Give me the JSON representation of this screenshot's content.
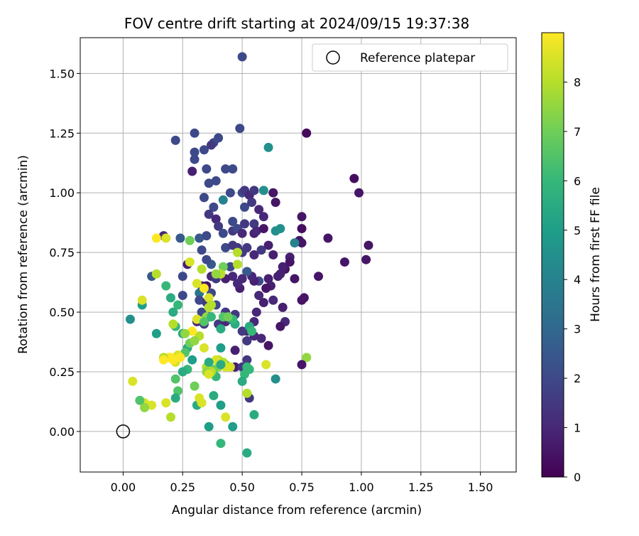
{
  "chart_data": {
    "type": "scatter",
    "title": "FOV centre drift starting at 2024/09/15 19:37:38",
    "xlabel": "Angular distance from reference (arcmin)",
    "ylabel": "Rotation from reference (arcmin)",
    "xlim": [
      -0.18,
      1.65
    ],
    "ylim": [
      -0.17,
      1.65
    ],
    "xticks": [
      0.0,
      0.25,
      0.5,
      0.75,
      1.0,
      1.25,
      1.5
    ],
    "yticks": [
      0.0,
      0.25,
      0.5,
      0.75,
      1.0,
      1.25,
      1.5
    ],
    "xtick_labels": [
      "0.00",
      "0.25",
      "0.50",
      "0.75",
      "1.00",
      "1.25",
      "1.50"
    ],
    "ytick_labels": [
      "0.00",
      "0.25",
      "0.50",
      "0.75",
      "1.00",
      "1.25",
      "1.50"
    ],
    "grid": true,
    "legend": {
      "placement": "top-right",
      "label": "Reference platepar"
    },
    "reference_point": {
      "x": 0.0,
      "y": 0.0
    },
    "colorbar": {
      "label": "Hours from first FF file",
      "range": [
        0,
        9
      ],
      "ticks": [
        0,
        1,
        2,
        3,
        4,
        5,
        6,
        7,
        8
      ],
      "colormap": "viridis",
      "colors": [
        "#440154",
        "#482878",
        "#3e4989",
        "#31688e",
        "#26828e",
        "#1f9e89",
        "#35b779",
        "#6ece58",
        "#b5de2b",
        "#fde725"
      ]
    },
    "points": [
      [
        0.5,
        1.57,
        2.0
      ],
      [
        0.77,
        1.25,
        0.2
      ],
      [
        0.22,
        1.22,
        2.0
      ],
      [
        0.3,
        1.25,
        2.0
      ],
      [
        0.49,
        1.27,
        2.0
      ],
      [
        0.3,
        1.17,
        2.0
      ],
      [
        0.34,
        1.18,
        2.0
      ],
      [
        0.38,
        1.21,
        2.0
      ],
      [
        0.4,
        1.23,
        2.0
      ],
      [
        0.3,
        1.14,
        2.0
      ],
      [
        0.61,
        1.19,
        4.5
      ],
      [
        0.37,
        1.2,
        1.5
      ],
      [
        0.29,
        1.09,
        0.8
      ],
      [
        0.35,
        1.1,
        2.0
      ],
      [
        0.39,
        1.05,
        2.0
      ],
      [
        0.43,
        1.1,
        2.0
      ],
      [
        0.46,
        1.1,
        2.0
      ],
      [
        0.97,
        1.06,
        0.3
      ],
      [
        0.99,
        1.0,
        0.5
      ],
      [
        0.36,
        1.04,
        2.0
      ],
      [
        0.34,
        0.98,
        2.0
      ],
      [
        0.45,
        1.0,
        2.0
      ],
      [
        0.5,
        1.0,
        2.0
      ],
      [
        0.51,
        1.01,
        1.5
      ],
      [
        0.53,
        0.99,
        1.0
      ],
      [
        0.55,
        1.01,
        1.5
      ],
      [
        0.59,
        1.01,
        4.5
      ],
      [
        0.63,
        1.0,
        0.5
      ],
      [
        0.42,
        0.97,
        4.0
      ],
      [
        0.38,
        0.94,
        2.0
      ],
      [
        0.36,
        0.91,
        1.5
      ],
      [
        0.39,
        0.89,
        1.0
      ],
      [
        0.46,
        0.88,
        2.0
      ],
      [
        0.51,
        0.94,
        2.0
      ],
      [
        0.54,
        0.96,
        1.5
      ],
      [
        0.57,
        0.93,
        1.0
      ],
      [
        0.59,
        0.9,
        1.0
      ],
      [
        0.64,
        0.96,
        0.5
      ],
      [
        0.75,
        0.9,
        0.5
      ],
      [
        0.32,
        0.81,
        2.5
      ],
      [
        0.24,
        0.81,
        2.5
      ],
      [
        0.35,
        0.82,
        2.0
      ],
      [
        0.4,
        0.86,
        1.5
      ],
      [
        0.42,
        0.83,
        2.0
      ],
      [
        0.46,
        0.84,
        1.5
      ],
      [
        0.48,
        0.85,
        2.0
      ],
      [
        0.5,
        0.83,
        1.0
      ],
      [
        0.51,
        0.87,
        1.5
      ],
      [
        0.55,
        0.87,
        1.5
      ],
      [
        0.55,
        0.83,
        0.8
      ],
      [
        0.56,
        0.84,
        1.0
      ],
      [
        0.59,
        0.85,
        0.5
      ],
      [
        0.64,
        0.84,
        4.5
      ],
      [
        0.66,
        0.85,
        4.5
      ],
      [
        0.75,
        0.85,
        0.3
      ],
      [
        0.74,
        0.8,
        0.5
      ],
      [
        0.75,
        0.79,
        0.5
      ],
      [
        0.72,
        0.79,
        4.0
      ],
      [
        0.86,
        0.81,
        0.5
      ],
      [
        1.03,
        0.78,
        0.5
      ],
      [
        1.02,
        0.72,
        0.5
      ],
      [
        0.93,
        0.71,
        0.5
      ],
      [
        0.7,
        0.73,
        0.8
      ],
      [
        0.7,
        0.71,
        0.5
      ],
      [
        0.68,
        0.68,
        0.5
      ],
      [
        0.66,
        0.66,
        0.8
      ],
      [
        0.61,
        0.64,
        0.8
      ],
      [
        0.62,
        0.61,
        0.8
      ],
      [
        0.6,
        0.6,
        0.5
      ],
      [
        0.57,
        0.63,
        2.0
      ],
      [
        0.55,
        0.63,
        0.8
      ],
      [
        0.54,
        0.65,
        1.0
      ],
      [
        0.52,
        0.67,
        2.5
      ],
      [
        0.5,
        0.64,
        1.0
      ],
      [
        0.46,
        0.65,
        1.0
      ],
      [
        0.43,
        0.64,
        0.8
      ],
      [
        0.49,
        0.6,
        0.8
      ],
      [
        0.48,
        0.62,
        1.0
      ],
      [
        0.45,
        0.69,
        2.0
      ],
      [
        0.43,
        0.77,
        2.0
      ],
      [
        0.46,
        0.78,
        1.5
      ],
      [
        0.48,
        0.77,
        1.5
      ],
      [
        0.5,
        0.75,
        1.5
      ],
      [
        0.52,
        0.77,
        1.5
      ],
      [
        0.55,
        0.74,
        1.0
      ],
      [
        0.58,
        0.76,
        1.5
      ],
      [
        0.61,
        0.78,
        0.8
      ],
      [
        0.63,
        0.74,
        0.8
      ],
      [
        0.65,
        0.65,
        0.8
      ],
      [
        0.67,
        0.69,
        0.8
      ],
      [
        0.72,
        0.64,
        0.5
      ],
      [
        0.82,
        0.65,
        0.5
      ],
      [
        0.76,
        0.56,
        0.5
      ],
      [
        0.75,
        0.55,
        0.5
      ],
      [
        0.67,
        0.52,
        0.8
      ],
      [
        0.68,
        0.46,
        1.0
      ],
      [
        0.66,
        0.44,
        0.5
      ],
      [
        0.63,
        0.55,
        1.0
      ],
      [
        0.59,
        0.54,
        0.8
      ],
      [
        0.57,
        0.57,
        1.0
      ],
      [
        0.56,
        0.5,
        1.0
      ],
      [
        0.55,
        0.46,
        1.0
      ],
      [
        0.52,
        0.42,
        1.0
      ],
      [
        0.5,
        0.42,
        1.5
      ],
      [
        0.52,
        0.38,
        1.5
      ],
      [
        0.55,
        0.4,
        1.0
      ],
      [
        0.58,
        0.39,
        1.0
      ],
      [
        0.61,
        0.36,
        0.5
      ],
      [
        0.47,
        0.34,
        0.8
      ],
      [
        0.47,
        0.27,
        0.8
      ],
      [
        0.52,
        0.3,
        1.5
      ],
      [
        0.53,
        0.14,
        1.5
      ],
      [
        0.5,
        0.27,
        1.5
      ],
      [
        0.37,
        0.7,
        2.5
      ],
      [
        0.33,
        0.76,
        2.0
      ],
      [
        0.35,
        0.72,
        2.0
      ],
      [
        0.27,
        0.7,
        0.8
      ],
      [
        0.25,
        0.65,
        2.0
      ],
      [
        0.37,
        0.65,
        1.0
      ],
      [
        0.39,
        0.64,
        1.5
      ],
      [
        0.33,
        0.61,
        1.0
      ],
      [
        0.35,
        0.61,
        0.5
      ],
      [
        0.32,
        0.58,
        3.5
      ],
      [
        0.37,
        0.58,
        2.0
      ],
      [
        0.32,
        0.55,
        2.0
      ],
      [
        0.35,
        0.54,
        1.5
      ],
      [
        0.39,
        0.53,
        2.0
      ],
      [
        0.33,
        0.5,
        2.0
      ],
      [
        0.36,
        0.48,
        1.0
      ],
      [
        0.34,
        0.45,
        1.5
      ],
      [
        0.31,
        0.46,
        1.0
      ],
      [
        0.4,
        0.45,
        1.5
      ],
      [
        0.43,
        0.46,
        1.0
      ],
      [
        0.45,
        0.47,
        2.0
      ],
      [
        0.43,
        0.5,
        1.5
      ],
      [
        0.47,
        0.49,
        1.5
      ],
      [
        0.17,
        0.82,
        1.0
      ],
      [
        0.12,
        0.65,
        2.5
      ],
      [
        0.25,
        0.57,
        2.0
      ],
      [
        0.03,
        0.47,
        4.5
      ],
      [
        0.08,
        0.53,
        5.0
      ],
      [
        0.14,
        0.41,
        5.0
      ],
      [
        0.2,
        0.56,
        5.5
      ],
      [
        0.21,
        0.5,
        5.5
      ],
      [
        0.23,
        0.53,
        6.0
      ],
      [
        0.18,
        0.61,
        6.0
      ],
      [
        0.22,
        0.44,
        6.0
      ],
      [
        0.25,
        0.41,
        5.5
      ],
      [
        0.27,
        0.35,
        5.5
      ],
      [
        0.29,
        0.3,
        5.0
      ],
      [
        0.27,
        0.26,
        6.0
      ],
      [
        0.25,
        0.25,
        5.5
      ],
      [
        0.22,
        0.22,
        6.5
      ],
      [
        0.23,
        0.17,
        6.5
      ],
      [
        0.22,
        0.14,
        5.5
      ],
      [
        0.3,
        0.19,
        7.0
      ],
      [
        0.31,
        0.11,
        5.5
      ],
      [
        0.36,
        0.02,
        5.0
      ],
      [
        0.41,
        -0.05,
        6.0
      ],
      [
        0.46,
        0.02,
        5.0
      ],
      [
        0.52,
        -0.09,
        5.5
      ],
      [
        0.55,
        0.07,
        5.5
      ],
      [
        0.64,
        0.22,
        4.5
      ],
      [
        0.51,
        0.24,
        6.0
      ],
      [
        0.5,
        0.21,
        5.5
      ],
      [
        0.52,
        0.27,
        6.0
      ],
      [
        0.53,
        0.44,
        5.5
      ],
      [
        0.54,
        0.42,
        6.0
      ],
      [
        0.47,
        0.45,
        5.5
      ],
      [
        0.46,
        0.47,
        6.0
      ],
      [
        0.42,
        0.48,
        6.5
      ],
      [
        0.41,
        0.43,
        5.5
      ],
      [
        0.41,
        0.35,
        5.0
      ],
      [
        0.43,
        0.28,
        7.0
      ],
      [
        0.4,
        0.27,
        7.5
      ],
      [
        0.38,
        0.26,
        7.0
      ],
      [
        0.39,
        0.23,
        6.0
      ],
      [
        0.38,
        0.15,
        5.5
      ],
      [
        0.41,
        0.11,
        5.0
      ],
      [
        0.37,
        0.25,
        8.0
      ],
      [
        0.35,
        0.27,
        8.0
      ],
      [
        0.35,
        0.25,
        7.5
      ],
      [
        0.4,
        0.3,
        8.0
      ],
      [
        0.42,
        0.29,
        8.0
      ],
      [
        0.43,
        0.27,
        8.5
      ],
      [
        0.52,
        0.16,
        8.0
      ],
      [
        0.6,
        0.28,
        8.5
      ],
      [
        0.77,
        0.31,
        7.5
      ],
      [
        0.43,
        0.06,
        8.5
      ],
      [
        0.33,
        0.12,
        8.5
      ],
      [
        0.32,
        0.14,
        8.5
      ],
      [
        0.2,
        0.06,
        8.0
      ],
      [
        0.18,
        0.12,
        8.5
      ],
      [
        0.09,
        0.12,
        8.5
      ],
      [
        0.12,
        0.11,
        8.5
      ],
      [
        0.09,
        0.1,
        7.5
      ],
      [
        0.07,
        0.13,
        6.5
      ],
      [
        0.04,
        0.21,
        8.5
      ],
      [
        0.08,
        0.55,
        8.5
      ],
      [
        0.14,
        0.81,
        9.0
      ],
      [
        0.18,
        0.81,
        8.5
      ],
      [
        0.14,
        0.66,
        8.0
      ],
      [
        0.28,
        0.71,
        8.5
      ],
      [
        0.28,
        0.8,
        7.0
      ],
      [
        0.33,
        0.68,
        8.0
      ],
      [
        0.34,
        0.6,
        9.0
      ],
      [
        0.36,
        0.56,
        8.5
      ],
      [
        0.37,
        0.53,
        8.0
      ],
      [
        0.36,
        0.52,
        8.0
      ],
      [
        0.31,
        0.62,
        8.5
      ],
      [
        0.31,
        0.47,
        8.5
      ],
      [
        0.35,
        0.48,
        7.5
      ],
      [
        0.34,
        0.46,
        6.5
      ],
      [
        0.42,
        0.69,
        7.0
      ],
      [
        0.41,
        0.66,
        8.0
      ],
      [
        0.39,
        0.66,
        7.5
      ],
      [
        0.48,
        0.7,
        8.0
      ],
      [
        0.48,
        0.75,
        8.0
      ],
      [
        0.44,
        0.48,
        7.0
      ],
      [
        0.32,
        0.4,
        8.0
      ],
      [
        0.29,
        0.42,
        9.0
      ],
      [
        0.28,
        0.37,
        7.0
      ],
      [
        0.26,
        0.33,
        6.5
      ],
      [
        0.23,
        0.32,
        8.5
      ],
      [
        0.22,
        0.31,
        8.5
      ],
      [
        0.22,
        0.29,
        8.5
      ],
      [
        0.2,
        0.31,
        9.0
      ],
      [
        0.19,
        0.31,
        9.0
      ],
      [
        0.17,
        0.31,
        8.0
      ],
      [
        0.17,
        0.3,
        9.0
      ],
      [
        0.21,
        0.3,
        9.0
      ],
      [
        0.24,
        0.31,
        9.0
      ],
      [
        0.26,
        0.41,
        7.5
      ],
      [
        0.21,
        0.45,
        8.0
      ],
      [
        0.34,
        0.35,
        8.5
      ],
      [
        0.36,
        0.24,
        8.5
      ],
      [
        0.39,
        0.3,
        8.5
      ],
      [
        0.45,
        0.27,
        8.5
      ],
      [
        0.53,
        0.26,
        6.0
      ],
      [
        0.36,
        0.29,
        5.5
      ],
      [
        0.75,
        0.28,
        0.5
      ],
      [
        0.41,
        0.28,
        5.5
      ],
      [
        0.37,
        0.48,
        6.0
      ],
      [
        0.3,
        0.38,
        7.5
      ]
    ]
  }
}
